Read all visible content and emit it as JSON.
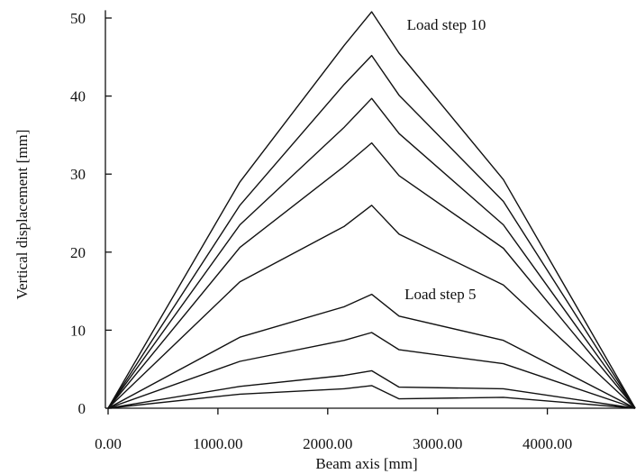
{
  "chart_data": {
    "type": "line",
    "title": "",
    "xlabel": "Beam axis [mm]",
    "ylabel": "Vertical displacement [mm]",
    "xlim": [
      -30,
      4800
    ],
    "ylim": [
      0,
      51
    ],
    "xticks": [
      0,
      1000,
      2000,
      3000,
      4000
    ],
    "xtick_labels": [
      "0.00",
      "1000.00",
      "2000.00",
      "3000.00",
      "4000.00"
    ],
    "yticks": [
      0,
      10,
      20,
      30,
      40,
      50
    ],
    "ytick_labels": [
      "0",
      "10",
      "20",
      "30",
      "40",
      "50"
    ],
    "grid": false,
    "legend": "none",
    "annotations": [
      {
        "text": "Load step 10",
        "x": 2720,
        "y": 48.5
      },
      {
        "text": "Load step 5",
        "x": 2700,
        "y": 14.0
      }
    ],
    "x": [
      0,
      1200,
      2150,
      2400,
      2650,
      3600,
      4800
    ],
    "series": [
      {
        "values": [
          0,
          1.8,
          2.5,
          2.9,
          1.2,
          1.4,
          0
        ]
      },
      {
        "values": [
          0,
          2.8,
          4.2,
          4.8,
          2.7,
          2.5,
          0
        ]
      },
      {
        "values": [
          0,
          6.0,
          8.7,
          9.7,
          7.5,
          5.7,
          0
        ]
      },
      {
        "values": [
          0,
          9.1,
          13.0,
          14.6,
          11.8,
          8.7,
          0
        ]
      },
      {
        "values": [
          0,
          16.2,
          23.3,
          26.0,
          22.3,
          15.8,
          0
        ]
      },
      {
        "values": [
          0,
          20.6,
          31.0,
          34.0,
          29.8,
          20.5,
          0
        ]
      },
      {
        "values": [
          0,
          23.5,
          36.0,
          39.7,
          35.2,
          23.5,
          0
        ]
      },
      {
        "values": [
          0,
          26.0,
          41.5,
          45.2,
          40.1,
          26.5,
          0
        ]
      },
      {
        "values": [
          0,
          29.0,
          46.5,
          50.8,
          45.5,
          29.3,
          0
        ]
      }
    ]
  }
}
